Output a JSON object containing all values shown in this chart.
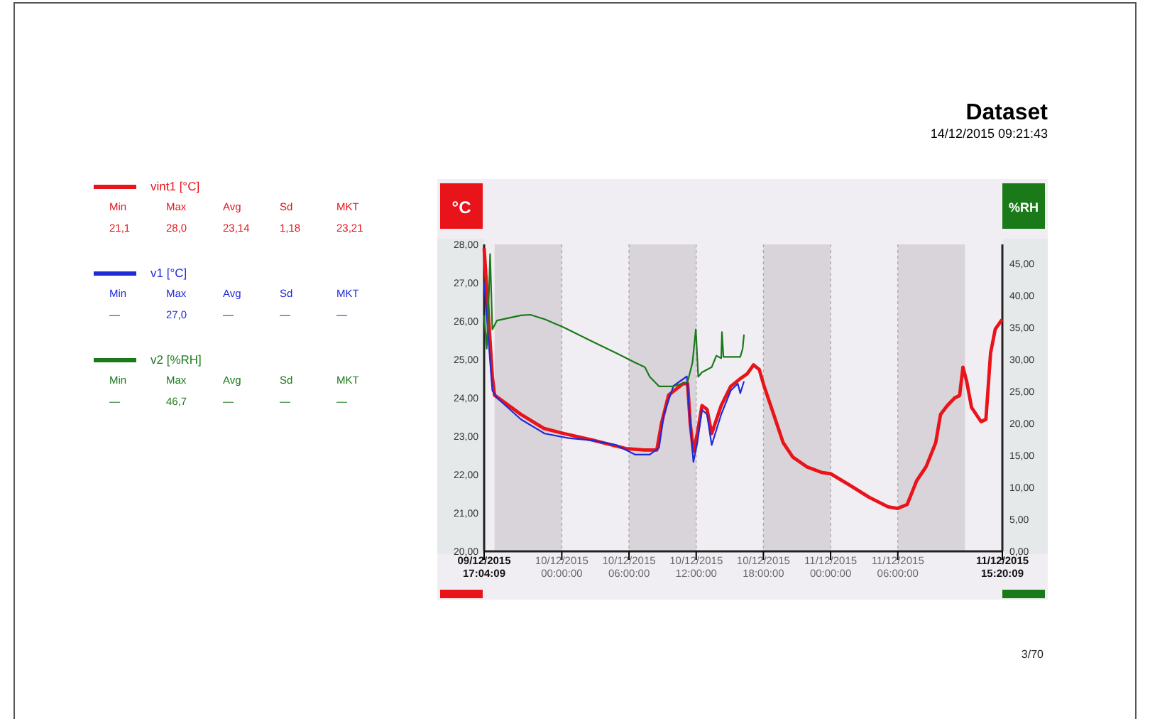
{
  "chart_data": {
    "type": "line",
    "title": "Dataset",
    "subtitle": "14/12/2015 09:21:43",
    "ylabel": "°C",
    "y2label": "%RH",
    "legend": "left",
    "marker": "none",
    "line_style": "solid",
    "grid": "x",
    "xlim": [
      "2015-12-09T17:04",
      "2015-12-11T15:20"
    ],
    "xticks": [
      {
        "value": "2015-12-09T17:04",
        "label": "09/12/2015\n17:04:09"
      },
      {
        "value": "2015-12-10T00:00",
        "label": "10/12/2015\n00:00:00"
      },
      {
        "value": "2015-12-10T06:00",
        "label": "10/12/2015\n06:00:00"
      },
      {
        "value": "2015-12-10T12:00",
        "label": "10/12/2015\n12:00:00"
      },
      {
        "value": "2015-12-10T18:00",
        "label": "10/12/2015\n18:00:00"
      },
      {
        "value": "2015-12-11T00:00",
        "label": "11/12/2015\n00:00:00"
      },
      {
        "value": "2015-12-11T06:00",
        "label": "11/12/2015\n06:00:00"
      },
      {
        "value": "2015-12-11T15:20",
        "label": "11/12/2015\n15:20:09"
      }
    ],
    "ylim": [
      20,
      28
    ],
    "yticks": [
      {
        "value": 20,
        "label": "20,00"
      },
      {
        "value": 21,
        "label": "21,00"
      },
      {
        "value": 22,
        "label": "22,00"
      },
      {
        "value": 23,
        "label": "23,00"
      },
      {
        "value": 24,
        "label": "24,00"
      },
      {
        "value": 25,
        "label": "25,00"
      },
      {
        "value": 26,
        "label": "26,00"
      },
      {
        "value": 27,
        "label": "27,00"
      },
      {
        "value": 28,
        "label": "28,00"
      }
    ],
    "y2lim": [
      0,
      48
    ],
    "y2ticks": [
      {
        "value": 0,
        "label": "0,00"
      },
      {
        "value": 5,
        "label": "5,00"
      },
      {
        "value": 10,
        "label": "10,00"
      },
      {
        "value": 15,
        "label": "15,00"
      },
      {
        "value": 20,
        "label": "20,00"
      },
      {
        "value": 25,
        "label": "25,00"
      },
      {
        "value": 30,
        "label": "30,00"
      },
      {
        "value": 35,
        "label": "35,00"
      },
      {
        "value": 40,
        "label": "40,00"
      },
      {
        "value": 45,
        "label": "45,00"
      }
    ],
    "bands": [
      {
        "axis": "x",
        "from": "2015-12-09T18:00",
        "to": "2015-12-10T00:00",
        "color": "#d9d4da"
      },
      {
        "axis": "x",
        "from": "2015-12-10T06:00",
        "to": "2015-12-10T12:00",
        "color": "#d9d4da"
      },
      {
        "axis": "x",
        "from": "2015-12-10T18:00",
        "to": "2015-12-11T00:00",
        "color": "#d9d4da"
      },
      {
        "axis": "x",
        "from": "2015-12-11T06:00",
        "to": "2015-12-11T12:00",
        "color": "#d9d4da"
      }
    ],
    "series": [
      {
        "name": "vint1  [°C]",
        "color": "#e8141a",
        "x": [
          "2015-12-09T17:04",
          "2015-12-09T17:48",
          "2015-12-09T18:00",
          "2015-12-09T20:21",
          "2015-12-09T22:26",
          "2015-12-10T00:12",
          "2015-12-10T02:44",
          "2015-12-10T05:43",
          "2015-12-10T07:22",
          "2015-12-10T08:29",
          "2015-12-10T08:54",
          "2015-12-10T09:32",
          "2015-12-10T10:49",
          "2015-12-10T11:14",
          "2015-12-10T11:28",
          "2015-12-10T11:45",
          "2015-12-10T12:06",
          "2015-12-10T12:31",
          "2015-12-10T12:58",
          "2015-12-10T13:23",
          "2015-12-10T14:14",
          "2015-12-10T15:05",
          "2015-12-10T15:56",
          "2015-12-10T16:34",
          "2015-12-10T17:07",
          "2015-12-10T17:38",
          "2015-12-10T18:04",
          "2015-12-10T18:55",
          "2015-12-10T19:46",
          "2015-12-10T20:37",
          "2015-12-10T21:54",
          "2015-12-10T23:10",
          "2015-12-11T00:01",
          "2015-12-11T01:44",
          "2015-12-11T03:26",
          "2015-12-11T05:08",
          "2015-12-11T05:59",
          "2015-12-11T06:50",
          "2015-12-11T07:41",
          "2015-12-11T08:32",
          "2015-12-11T09:23",
          "2015-12-11T09:49",
          "2015-12-11T10:27",
          "2015-12-11T11:05",
          "2015-12-11T11:31",
          "2015-12-11T11:49",
          "2015-12-11T12:09",
          "2015-12-11T12:35",
          "2015-12-11T13:26",
          "2015-12-11T13:52",
          "2015-12-11T14:17",
          "2015-12-11T14:42",
          "2015-12-11T15:18"
        ],
        "values": [
          27.9,
          24.55,
          24.07,
          23.57,
          23.2,
          23.07,
          22.9,
          22.68,
          22.64,
          22.64,
          23.33,
          24.07,
          24.37,
          24.37,
          23.33,
          22.6,
          23.07,
          23.8,
          23.7,
          23.07,
          23.8,
          24.3,
          24.5,
          24.63,
          24.86,
          24.74,
          24.3,
          23.57,
          22.83,
          22.46,
          22.2,
          22.06,
          22.02,
          21.72,
          21.41,
          21.16,
          21.12,
          21.22,
          21.84,
          22.21,
          22.83,
          23.57,
          23.81,
          24.0,
          24.06,
          24.8,
          24.43,
          23.75,
          23.38,
          23.44,
          25.17,
          25.79,
          26.04
        ]
      },
      {
        "name": "v1  [°C]",
        "color": "#1f2bd8",
        "x": [
          "2015-12-09T17:04",
          "2015-12-09T17:48",
          "2015-12-09T18:13",
          "2015-12-09T20:21",
          "2015-12-09T22:28",
          "2015-12-10T00:36",
          "2015-12-10T02:44",
          "2015-12-10T04:52",
          "2015-12-10T06:34",
          "2015-12-10T07:51",
          "2015-12-10T08:41",
          "2015-12-10T09:07",
          "2015-12-10T09:58",
          "2015-12-10T11:10",
          "2015-12-10T11:28",
          "2015-12-10T11:45",
          "2015-12-10T12:06",
          "2015-12-10T12:31",
          "2015-12-10T12:58",
          "2015-12-10T13:23",
          "2015-12-10T14:14",
          "2015-12-10T15:05",
          "2015-12-10T15:43",
          "2015-12-10T15:56",
          "2015-12-10T16:16"
        ],
        "values": [
          27.0,
          24.19,
          24.0,
          23.44,
          23.07,
          22.95,
          22.89,
          22.77,
          22.52,
          22.52,
          22.7,
          23.57,
          24.31,
          24.56,
          23.32,
          22.33,
          22.83,
          23.69,
          23.57,
          22.77,
          23.57,
          24.19,
          24.37,
          24.12,
          24.43
        ]
      },
      {
        "name": "v2  [%RH]",
        "color": "#1a7a1a",
        "axis": "y2",
        "x": [
          "2015-12-09T17:04",
          "2015-12-09T17:18",
          "2015-12-09T17:30",
          "2015-12-09T17:36",
          "2015-12-09T17:48",
          "2015-12-09T18:13",
          "2015-12-09T20:21",
          "2015-12-09T21:12",
          "2015-12-09T22:28",
          "2015-12-10T00:12",
          "2015-12-10T02:44",
          "2015-12-10T04:52",
          "2015-12-10T06:34",
          "2015-12-10T07:25",
          "2015-12-10T07:51",
          "2015-12-10T08:41",
          "2015-12-10T09:58",
          "2015-12-10T11:14",
          "2015-12-10T11:40",
          "2015-12-10T11:58",
          "2015-12-10T12:11",
          "2015-12-10T12:31",
          "2015-12-10T13:23",
          "2015-12-10T13:48",
          "2015-12-10T14:14",
          "2015-12-10T14:18",
          "2015-12-10T14:26",
          "2015-12-10T15:56",
          "2015-12-10T16:09",
          "2015-12-10T16:16"
        ],
        "values": [
          36.9,
          31.7,
          40.6,
          46.5,
          34.7,
          36.1,
          36.9,
          37.0,
          36.3,
          35.0,
          32.8,
          31.0,
          29.5,
          28.8,
          27.3,
          25.8,
          25.8,
          26.5,
          29.5,
          34.7,
          27.3,
          28.0,
          28.8,
          30.6,
          30.2,
          34.3,
          30.4,
          30.4,
          31.7,
          33.9
        ]
      }
    ],
    "annotations": [
      "Min",
      "Max",
      "Avg",
      "Sd",
      "MKT",
      "21,1",
      "28,0",
      "23,14",
      "1,18",
      "23,21",
      "Min",
      "Max",
      "Avg",
      "Sd",
      "MKT",
      "—",
      "27,0",
      "—",
      "—",
      "—",
      "Min",
      "Max",
      "Avg",
      "Sd",
      "MKT",
      "—",
      "46,7",
      "—",
      "—",
      "—",
      "3/70"
    ]
  }
}
